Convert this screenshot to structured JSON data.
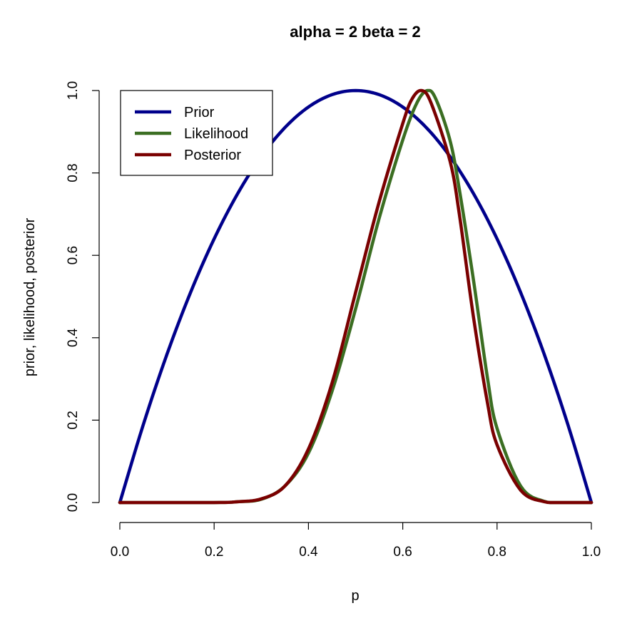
{
  "chart_data": {
    "type": "line",
    "title": "alpha =  2 beta =  2",
    "xlabel": "p",
    "ylabel": "prior, likelihood, posterior",
    "xlim": [
      0,
      1
    ],
    "ylim": [
      0,
      1
    ],
    "x_ticks": [
      "0.0",
      "0.2",
      "0.4",
      "0.6",
      "0.8",
      "1.0"
    ],
    "y_ticks": [
      "0.0",
      "0.2",
      "0.4",
      "0.6",
      "0.8",
      "1.0"
    ],
    "grid": false,
    "legend_position": "top-left",
    "series": [
      {
        "name": "Prior",
        "color": "#00008B",
        "points": [
          [
            0.0,
            0.0
          ],
          [
            0.05,
            0.19
          ],
          [
            0.1,
            0.36
          ],
          [
            0.15,
            0.51
          ],
          [
            0.2,
            0.64
          ],
          [
            0.25,
            0.75
          ],
          [
            0.3,
            0.84
          ],
          [
            0.35,
            0.91
          ],
          [
            0.4,
            0.96
          ],
          [
            0.45,
            0.99
          ],
          [
            0.5,
            1.0
          ],
          [
            0.55,
            0.99
          ],
          [
            0.6,
            0.96
          ],
          [
            0.65,
            0.91
          ],
          [
            0.7,
            0.84
          ],
          [
            0.75,
            0.75
          ],
          [
            0.8,
            0.64
          ],
          [
            0.85,
            0.51
          ],
          [
            0.9,
            0.36
          ],
          [
            0.95,
            0.19
          ],
          [
            1.0,
            0.0
          ]
        ]
      },
      {
        "name": "Likelihood",
        "color": "#3B6E22",
        "points": [
          [
            0.0,
            0.0
          ],
          [
            0.2,
            0.0
          ],
          [
            0.25,
            0.002
          ],
          [
            0.3,
            0.008
          ],
          [
            0.35,
            0.04
          ],
          [
            0.4,
            0.12
          ],
          [
            0.45,
            0.27
          ],
          [
            0.5,
            0.47
          ],
          [
            0.55,
            0.69
          ],
          [
            0.6,
            0.88
          ],
          [
            0.63,
            0.97
          ],
          [
            0.652,
            1.0
          ],
          [
            0.67,
            0.98
          ],
          [
            0.7,
            0.88
          ],
          [
            0.72,
            0.76
          ],
          [
            0.75,
            0.54
          ],
          [
            0.78,
            0.3
          ],
          [
            0.8,
            0.18
          ],
          [
            0.85,
            0.04
          ],
          [
            0.9,
            0.003
          ],
          [
            0.95,
            0.0
          ],
          [
            1.0,
            0.0
          ]
        ]
      },
      {
        "name": "Posterior",
        "color": "#7A0000",
        "points": [
          [
            0.0,
            0.0
          ],
          [
            0.2,
            0.0
          ],
          [
            0.25,
            0.002
          ],
          [
            0.3,
            0.009
          ],
          [
            0.35,
            0.04
          ],
          [
            0.4,
            0.13
          ],
          [
            0.45,
            0.29
          ],
          [
            0.5,
            0.51
          ],
          [
            0.55,
            0.73
          ],
          [
            0.6,
            0.92
          ],
          [
            0.62,
            0.98
          ],
          [
            0.64,
            1.0
          ],
          [
            0.66,
            0.97
          ],
          [
            0.7,
            0.83
          ],
          [
            0.72,
            0.7
          ],
          [
            0.75,
            0.45
          ],
          [
            0.78,
            0.24
          ],
          [
            0.8,
            0.14
          ],
          [
            0.85,
            0.03
          ],
          [
            0.9,
            0.002
          ],
          [
            0.95,
            0.0
          ],
          [
            1.0,
            0.0
          ]
        ]
      }
    ]
  }
}
